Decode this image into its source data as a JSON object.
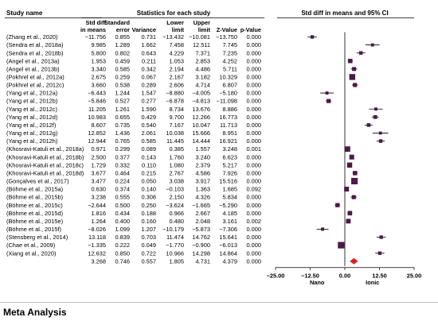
{
  "headers": {
    "study": "Study name",
    "stats": "Statistics for each study",
    "ci": "Std diff in means and 95% CI",
    "cols": [
      [
        "Std diff",
        "in means"
      ],
      [
        "Standard",
        "error"
      ],
      [
        "",
        "Variance"
      ],
      [
        "Lower",
        "limit"
      ],
      [
        "Upper",
        "limit"
      ],
      [
        "",
        "Z-Value"
      ],
      [
        "",
        "p-Value"
      ]
    ]
  },
  "footer_title": "Meta Analysis",
  "colors": {
    "study_marker": "#4b1a48",
    "summary_marker": "#e0201b"
  },
  "chart_data": {
    "type": "forest",
    "xlim": [
      -25,
      25
    ],
    "x_ticks": [
      "−25.00",
      "−12.50",
      "0.00",
      "12.50",
      "25.00"
    ],
    "favours_left": "Nano",
    "favours_right": "Ionic",
    "rows": [
      {
        "study": "(Zhang et al., 2020)",
        "smd": "−11.756",
        "se": "0.855",
        "var": "0.731",
        "lower": "−13.432",
        "upper": "−10.081",
        "z": "−13.750",
        "p": "0.000",
        "est": -11.756,
        "lo": -13.432,
        "hi": -10.081
      },
      {
        "study": "(Sendra et al., 2018a)",
        "smd": "9.985",
        "se": "1.289",
        "var": "1.662",
        "lower": "7.458",
        "upper": "12.511",
        "z": "7.745",
        "p": "0.000",
        "est": 9.985,
        "lo": 7.458,
        "hi": 12.511
      },
      {
        "study": "(Sendra et al., 2018b)",
        "smd": "5.800",
        "se": "0.802",
        "var": "0.643",
        "lower": "4.229",
        "upper": "7.371",
        "z": "7.235",
        "p": "0.000",
        "est": 5.8,
        "lo": 4.229,
        "hi": 7.371
      },
      {
        "study": "(Angel et al., 2013a)",
        "smd": "1.953",
        "se": "0.459",
        "var": "0.211",
        "lower": "1.053",
        "upper": "2.853",
        "z": "4.252",
        "p": "0.000",
        "est": 1.953,
        "lo": 1.053,
        "hi": 2.853
      },
      {
        "study": "(Angel et al., 2013b)",
        "smd": "3.340",
        "se": "0.585",
        "var": "0.342",
        "lower": "2.194",
        "upper": "4.486",
        "z": "5.711",
        "p": "0.000",
        "est": 3.34,
        "lo": 2.194,
        "hi": 4.486
      },
      {
        "study": "(Pokhrel et al., 2012a)",
        "smd": "2.675",
        "se": "0.259",
        "var": "0.067",
        "lower": "2.167",
        "upper": "3.182",
        "z": "10.329",
        "p": "0.000",
        "est": 2.675,
        "lo": 2.167,
        "hi": 3.182
      },
      {
        "study": "(Pokhrel et al., 2012c)",
        "smd": "3.660",
        "se": "0.538",
        "var": "0.289",
        "lower": "2.606",
        "upper": "4.714",
        "z": "6.807",
        "p": "0.000",
        "est": 3.66,
        "lo": 2.606,
        "hi": 4.714
      },
      {
        "study": "(Yang et al., 2012a)",
        "smd": "−6.443",
        "se": "1.244",
        "var": "1.547",
        "lower": "−8.880",
        "upper": "−4.005",
        "z": "−5.180",
        "p": "0.000",
        "est": -6.443,
        "lo": -8.88,
        "hi": -4.005
      },
      {
        "study": "(Yang et al., 2012b)",
        "smd": "−5.846",
        "se": "0.527",
        "var": "0.277",
        "lower": "−6.878",
        "upper": "−4.813",
        "z": "−11.098",
        "p": "0.000",
        "est": -5.846,
        "lo": -6.878,
        "hi": -4.813
      },
      {
        "study": "(Yang et al., 2012c)",
        "smd": "11.205",
        "se": "1.261",
        "var": "1.590",
        "lower": "8.734",
        "upper": "13.676",
        "z": "8.886",
        "p": "0.000",
        "est": 11.205,
        "lo": 8.734,
        "hi": 13.676
      },
      {
        "study": "(Yang et al., 2012d)",
        "smd": "10.983",
        "se": "0.655",
        "var": "0.429",
        "lower": "9.700",
        "upper": "12.266",
        "z": "16.773",
        "p": "0.000",
        "est": 10.983,
        "lo": 9.7,
        "hi": 12.266
      },
      {
        "study": "(Yang et al., 2012f)",
        "smd": "8.607",
        "se": "0.735",
        "var": "0.540",
        "lower": "7.167",
        "upper": "10.047",
        "z": "11.713",
        "p": "0.000",
        "est": 8.607,
        "lo": 7.167,
        "hi": 10.047
      },
      {
        "study": "(Yang et al., 2012g)",
        "smd": "12.852",
        "se": "1.436",
        "var": "2.061",
        "lower": "10.038",
        "upper": "15.666",
        "z": "8.951",
        "p": "0.000",
        "est": 12.852,
        "lo": 10.038,
        "hi": 15.666
      },
      {
        "study": "(Yang et al., 2012h)",
        "smd": "12.944",
        "se": "0.765",
        "var": "0.585",
        "lower": "11.445",
        "upper": "14.444",
        "z": "16.921",
        "p": "0.000",
        "est": 12.944,
        "lo": 11.445,
        "hi": 14.444
      },
      {
        "study": "(Khosravi-Katuli et al., 2018a)",
        "smd": "0.971",
        "se": "0.299",
        "var": "0.089",
        "lower": "0.385",
        "upper": "1.557",
        "z": "3.248",
        "p": "0.001",
        "est": 0.971,
        "lo": 0.385,
        "hi": 1.557
      },
      {
        "study": "(Khosravi-Katuli et al., 2018b)",
        "smd": "2.500",
        "se": "0.377",
        "var": "0.143",
        "lower": "1.760",
        "upper": "3.240",
        "z": "6.623",
        "p": "0.000",
        "est": 2.5,
        "lo": 1.76,
        "hi": 3.24
      },
      {
        "study": "(Khosravi-Katuli et al., 2018c)",
        "smd": "1.729",
        "se": "0.332",
        "var": "0.110",
        "lower": "1.080",
        "upper": "2.379",
        "z": "5.217",
        "p": "0.000",
        "est": 1.729,
        "lo": 1.08,
        "hi": 2.379
      },
      {
        "study": "(Khosravi-Katuli et al., 2018d)",
        "smd": "3.677",
        "se": "0.464",
        "var": "0.215",
        "lower": "2.767",
        "upper": "4.586",
        "z": "7.926",
        "p": "0.000",
        "est": 3.677,
        "lo": 2.767,
        "hi": 4.586
      },
      {
        "study": "(Gonçalves et al., 2017)",
        "smd": "3.477",
        "se": "0.224",
        "var": "0.050",
        "lower": "3.038",
        "upper": "3.917",
        "z": "15.516",
        "p": "0.000",
        "est": 3.477,
        "lo": 3.038,
        "hi": 3.917
      },
      {
        "study": "(Böhme et al., 2015a)",
        "smd": "0.630",
        "se": "0.374",
        "var": "0.140",
        "lower": "−0.103",
        "upper": "1.363",
        "z": "1.685",
        "p": "0.092",
        "est": 0.63,
        "lo": -0.103,
        "hi": 1.363
      },
      {
        "study": "(Böhme et al., 2015b)",
        "smd": "3.238",
        "se": "0.555",
        "var": "0.308",
        "lower": "2.150",
        "upper": "4.326",
        "z": "5.834",
        "p": "0.000",
        "est": 3.238,
        "lo": 2.15,
        "hi": 4.326
      },
      {
        "study": "(Böhme et al., 2015c)",
        "smd": "−2.644",
        "se": "0.500",
        "var": "0.250",
        "lower": "−3.624",
        "upper": "−1.665",
        "z": "−5.290",
        "p": "0.000",
        "est": -2.644,
        "lo": -3.624,
        "hi": -1.665
      },
      {
        "study": "(Böhme et al., 2015d)",
        "smd": "1.816",
        "se": "0.434",
        "var": "0.188",
        "lower": "0.966",
        "upper": "2.667",
        "z": "4.185",
        "p": "0.000",
        "est": 1.816,
        "lo": 0.966,
        "hi": 2.667
      },
      {
        "study": "(Böhme et al., 2015e)",
        "smd": "1.264",
        "se": "0.400",
        "var": "0.160",
        "lower": "0.480",
        "upper": "2.048",
        "z": "3.161",
        "p": "0.002",
        "est": 1.264,
        "lo": 0.48,
        "hi": 2.048
      },
      {
        "study": "(Böhme et al., 2015f)",
        "smd": "−8.026",
        "se": "1.099",
        "var": "1.207",
        "lower": "−10.179",
        "upper": "−5.873",
        "z": "−7.306",
        "p": "0.000",
        "est": -8.026,
        "lo": -10.179,
        "hi": -5.873
      },
      {
        "study": "(Stensberg et al., 2014)",
        "smd": "13.118",
        "se": "0.839",
        "var": "0.703",
        "lower": "11.474",
        "upper": "14.762",
        "z": "15.641",
        "p": "0.000",
        "est": 13.118,
        "lo": 11.474,
        "hi": 14.762
      },
      {
        "study": "(Chae et al., 2009)",
        "smd": "−1.335",
        "se": "0.222",
        "var": "0.049",
        "lower": "−1.770",
        "upper": "−0.900",
        "z": "−6.013",
        "p": "0.000",
        "est": -1.335,
        "lo": -1.77,
        "hi": -0.9
      },
      {
        "study": "(Xiang et al., 2020)",
        "smd": "12.632",
        "se": "0.850",
        "var": "0.722",
        "lower": "10.966",
        "upper": "14.298",
        "z": "14.864",
        "p": "0.000",
        "est": 12.632,
        "lo": 10.966,
        "hi": 14.298
      }
    ],
    "summary": {
      "smd": "3.268",
      "se": "0.746",
      "var": "0.557",
      "lower": "1.805",
      "upper": "4.731",
      "z": "4.379",
      "p": "0.000",
      "est": 3.268,
      "lo": 1.805,
      "hi": 4.731
    }
  }
}
